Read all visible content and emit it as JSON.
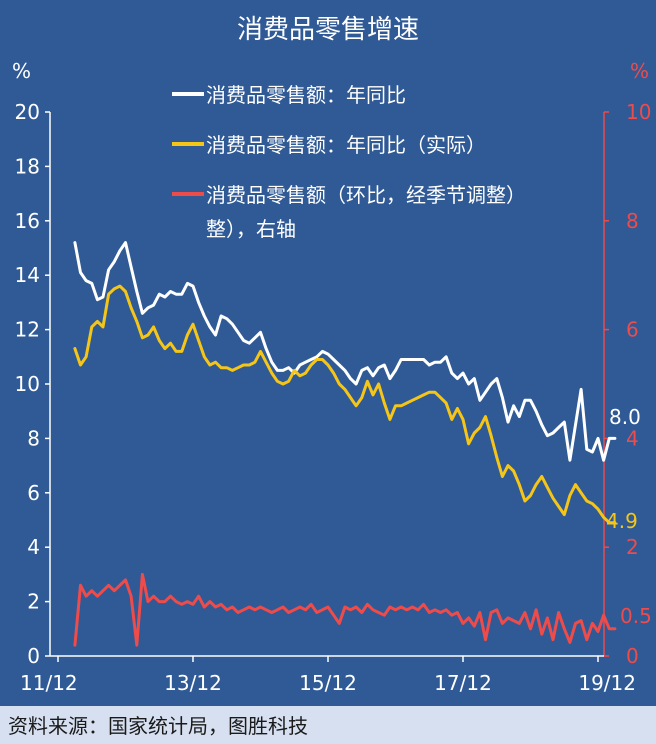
{
  "chart_data": {
    "type": "line",
    "title": "消费品零售增速",
    "left_axis": {
      "unit": "%",
      "range": [
        0,
        20
      ],
      "ticks": [
        "0",
        "2",
        "4",
        "6",
        "8",
        "10",
        "12",
        "14",
        "16",
        "18",
        "20"
      ]
    },
    "right_axis": {
      "unit": "%",
      "range": [
        0,
        10
      ],
      "ticks": [
        "0",
        "2",
        "4",
        "6",
        "8",
        "10"
      ]
    },
    "x_ticks": [
      "11/12",
      "13/12",
      "15/12",
      "17/12",
      "19/12"
    ],
    "x_tick_months": [
      0,
      24,
      48,
      72,
      96
    ],
    "legend_placement": "top-right",
    "grid": false,
    "series": [
      {
        "name": "消费品零售额：年同比",
        "color": "#ffffff",
        "axis": "left",
        "end_label": "8.0",
        "values": [
          [
            3,
            15.2
          ],
          [
            4,
            14.1
          ],
          [
            5,
            13.8
          ],
          [
            6,
            13.7
          ],
          [
            7,
            13.1
          ],
          [
            8,
            13.2
          ],
          [
            9,
            14.2
          ],
          [
            10,
            14.5
          ],
          [
            11,
            14.9
          ],
          [
            12,
            15.2
          ],
          [
            13,
            14.3
          ],
          [
            14,
            13.4
          ],
          [
            15,
            12.6
          ],
          [
            16,
            12.8
          ],
          [
            17,
            12.9
          ],
          [
            18,
            13.3
          ],
          [
            19,
            13.2
          ],
          [
            20,
            13.4
          ],
          [
            21,
            13.3
          ],
          [
            22,
            13.3
          ],
          [
            23,
            13.7
          ],
          [
            24,
            13.6
          ],
          [
            25,
            13.0
          ],
          [
            26,
            12.5
          ],
          [
            27,
            12.1
          ],
          [
            28,
            11.8
          ],
          [
            29,
            12.5
          ],
          [
            30,
            12.4
          ],
          [
            31,
            12.2
          ],
          [
            32,
            11.9
          ],
          [
            33,
            11.6
          ],
          [
            34,
            11.5
          ],
          [
            35,
            11.7
          ],
          [
            36,
            11.9
          ],
          [
            37,
            11.3
          ],
          [
            38,
            10.8
          ],
          [
            39,
            10.5
          ],
          [
            40,
            10.5
          ],
          [
            41,
            10.6
          ],
          [
            42,
            10.4
          ],
          [
            43,
            10.7
          ],
          [
            44,
            10.8
          ],
          [
            45,
            10.9
          ],
          [
            46,
            11.0
          ],
          [
            47,
            11.2
          ],
          [
            48,
            11.1
          ],
          [
            49,
            10.9
          ],
          [
            50,
            10.7
          ],
          [
            51,
            10.5
          ],
          [
            52,
            10.2
          ],
          [
            53,
            10.0
          ],
          [
            54,
            10.5
          ],
          [
            55,
            10.6
          ],
          [
            56,
            10.3
          ],
          [
            57,
            10.6
          ],
          [
            58,
            10.7
          ],
          [
            59,
            10.2
          ],
          [
            60,
            10.5
          ],
          [
            61,
            10.9
          ],
          [
            62,
            10.9
          ],
          [
            63,
            10.9
          ],
          [
            64,
            10.9
          ],
          [
            65,
            10.9
          ],
          [
            66,
            10.7
          ],
          [
            67,
            10.8
          ],
          [
            68,
            10.8
          ],
          [
            69,
            11.0
          ],
          [
            70,
            10.4
          ],
          [
            71,
            10.2
          ],
          [
            72,
            10.4
          ],
          [
            73,
            10.0
          ],
          [
            74,
            10.2
          ],
          [
            75,
            9.4
          ],
          [
            76,
            9.7
          ],
          [
            77,
            10.0
          ],
          [
            78,
            10.2
          ],
          [
            79,
            9.5
          ],
          [
            80,
            8.6
          ],
          [
            81,
            9.2
          ],
          [
            82,
            8.8
          ],
          [
            83,
            9.4
          ],
          [
            84,
            9.4
          ],
          [
            85,
            9.0
          ],
          [
            86,
            8.5
          ],
          [
            87,
            8.1
          ],
          [
            88,
            8.2
          ],
          [
            89,
            8.4
          ],
          [
            90,
            8.6
          ],
          [
            91,
            7.2
          ],
          [
            92,
            8.5
          ],
          [
            93,
            9.8
          ],
          [
            94,
            7.6
          ],
          [
            95,
            7.5
          ],
          [
            96,
            8.0
          ],
          [
            97,
            7.2
          ],
          [
            98,
            8.0
          ],
          [
            99,
            8.0
          ]
        ]
      },
      {
        "name": "消费品零售额：年同比（实际）",
        "color": "#f5c518",
        "axis": "left",
        "end_label": "4.9",
        "values": [
          [
            3,
            11.3
          ],
          [
            4,
            10.7
          ],
          [
            5,
            11.0
          ],
          [
            6,
            12.1
          ],
          [
            7,
            12.3
          ],
          [
            8,
            12.1
          ],
          [
            9,
            13.3
          ],
          [
            10,
            13.5
          ],
          [
            11,
            13.6
          ],
          [
            12,
            13.4
          ],
          [
            13,
            12.8
          ],
          [
            14,
            12.3
          ],
          [
            15,
            11.7
          ],
          [
            16,
            11.8
          ],
          [
            17,
            12.1
          ],
          [
            18,
            11.6
          ],
          [
            19,
            11.3
          ],
          [
            20,
            11.5
          ],
          [
            21,
            11.2
          ],
          [
            22,
            11.2
          ],
          [
            23,
            11.8
          ],
          [
            24,
            12.2
          ],
          [
            25,
            11.6
          ],
          [
            26,
            11.0
          ],
          [
            27,
            10.7
          ],
          [
            28,
            10.8
          ],
          [
            29,
            10.6
          ],
          [
            30,
            10.6
          ],
          [
            31,
            10.5
          ],
          [
            32,
            10.6
          ],
          [
            33,
            10.7
          ],
          [
            34,
            10.7
          ],
          [
            35,
            10.8
          ],
          [
            36,
            11.2
          ],
          [
            37,
            10.8
          ],
          [
            38,
            10.4
          ],
          [
            39,
            10.1
          ],
          [
            40,
            10.0
          ],
          [
            41,
            10.1
          ],
          [
            42,
            10.5
          ],
          [
            43,
            10.3
          ],
          [
            44,
            10.4
          ],
          [
            45,
            10.7
          ],
          [
            46,
            10.9
          ],
          [
            47,
            10.9
          ],
          [
            48,
            10.7
          ],
          [
            49,
            10.4
          ],
          [
            50,
            10.0
          ],
          [
            51,
            9.8
          ],
          [
            52,
            9.5
          ],
          [
            53,
            9.2
          ],
          [
            54,
            9.5
          ],
          [
            55,
            10.1
          ],
          [
            56,
            9.6
          ],
          [
            57,
            10.0
          ],
          [
            58,
            9.3
          ],
          [
            59,
            8.7
          ],
          [
            60,
            9.2
          ],
          [
            61,
            9.2
          ],
          [
            62,
            9.3
          ],
          [
            63,
            9.4
          ],
          [
            64,
            9.5
          ],
          [
            65,
            9.6
          ],
          [
            66,
            9.7
          ],
          [
            67,
            9.7
          ],
          [
            68,
            9.5
          ],
          [
            69,
            9.3
          ],
          [
            70,
            8.7
          ],
          [
            71,
            9.1
          ],
          [
            72,
            8.7
          ],
          [
            73,
            7.8
          ],
          [
            74,
            8.2
          ],
          [
            75,
            8.4
          ],
          [
            76,
            8.8
          ],
          [
            77,
            8.1
          ],
          [
            78,
            7.3
          ],
          [
            79,
            6.6
          ],
          [
            80,
            7.0
          ],
          [
            81,
            6.8
          ],
          [
            82,
            6.3
          ],
          [
            83,
            5.7
          ],
          [
            84,
            5.9
          ],
          [
            85,
            6.3
          ],
          [
            86,
            6.6
          ],
          [
            87,
            6.2
          ],
          [
            88,
            5.8
          ],
          [
            89,
            5.5
          ],
          [
            90,
            5.2
          ],
          [
            91,
            5.9
          ],
          [
            92,
            6.3
          ],
          [
            93,
            6.0
          ],
          [
            94,
            5.7
          ],
          [
            95,
            5.6
          ],
          [
            96,
            5.4
          ],
          [
            97,
            5.1
          ],
          [
            98,
            4.9
          ],
          [
            99,
            4.9
          ]
        ]
      },
      {
        "name": "消费品零售额（环比，经季节调整），右轴",
        "color": "#ee4b4b",
        "axis": "right",
        "end_label": "0.5",
        "values": [
          [
            3,
            0.2
          ],
          [
            4,
            1.3
          ],
          [
            5,
            1.1
          ],
          [
            6,
            1.2
          ],
          [
            7,
            1.1
          ],
          [
            8,
            1.2
          ],
          [
            9,
            1.3
          ],
          [
            10,
            1.2
          ],
          [
            11,
            1.3
          ],
          [
            12,
            1.4
          ],
          [
            13,
            1.1
          ],
          [
            14,
            0.2
          ],
          [
            15,
            1.5
          ],
          [
            16,
            1.0
          ],
          [
            17,
            1.1
          ],
          [
            18,
            1.0
          ],
          [
            19,
            1.0
          ],
          [
            20,
            1.1
          ],
          [
            21,
            1.0
          ],
          [
            22,
            0.95
          ],
          [
            23,
            1.0
          ],
          [
            24,
            0.95
          ],
          [
            25,
            1.1
          ],
          [
            26,
            0.9
          ],
          [
            27,
            1.0
          ],
          [
            28,
            0.9
          ],
          [
            29,
            0.95
          ],
          [
            30,
            0.85
          ],
          [
            31,
            0.9
          ],
          [
            32,
            0.8
          ],
          [
            33,
            0.85
          ],
          [
            34,
            0.9
          ],
          [
            35,
            0.85
          ],
          [
            36,
            0.9
          ],
          [
            37,
            0.85
          ],
          [
            38,
            0.8
          ],
          [
            39,
            0.85
          ],
          [
            40,
            0.9
          ],
          [
            41,
            0.8
          ],
          [
            42,
            0.85
          ],
          [
            43,
            0.9
          ],
          [
            44,
            0.85
          ],
          [
            45,
            0.95
          ],
          [
            46,
            0.8
          ],
          [
            47,
            0.85
          ],
          [
            48,
            0.9
          ],
          [
            49,
            0.75
          ],
          [
            50,
            0.6
          ],
          [
            51,
            0.9
          ],
          [
            52,
            0.85
          ],
          [
            53,
            0.9
          ],
          [
            54,
            0.8
          ],
          [
            55,
            0.95
          ],
          [
            56,
            0.85
          ],
          [
            57,
            0.8
          ],
          [
            58,
            0.75
          ],
          [
            59,
            0.9
          ],
          [
            60,
            0.85
          ],
          [
            61,
            0.9
          ],
          [
            62,
            0.85
          ],
          [
            63,
            0.9
          ],
          [
            64,
            0.85
          ],
          [
            65,
            0.95
          ],
          [
            66,
            0.8
          ],
          [
            67,
            0.85
          ],
          [
            68,
            0.8
          ],
          [
            69,
            0.85
          ],
          [
            70,
            0.75
          ],
          [
            71,
            0.8
          ],
          [
            72,
            0.6
          ],
          [
            73,
            0.7
          ],
          [
            74,
            0.55
          ],
          [
            75,
            0.8
          ],
          [
            76,
            0.3
          ],
          [
            77,
            0.8
          ],
          [
            78,
            0.85
          ],
          [
            79,
            0.6
          ],
          [
            80,
            0.7
          ],
          [
            81,
            0.65
          ],
          [
            82,
            0.6
          ],
          [
            83,
            0.8
          ],
          [
            84,
            0.5
          ],
          [
            85,
            0.85
          ],
          [
            86,
            0.4
          ],
          [
            87,
            0.7
          ],
          [
            88,
            0.3
          ],
          [
            89,
            0.8
          ],
          [
            90,
            0.5
          ],
          [
            91,
            0.25
          ],
          [
            92,
            0.6
          ],
          [
            93,
            0.65
          ],
          [
            94,
            0.3
          ],
          [
            95,
            0.6
          ],
          [
            96,
            0.45
          ],
          [
            97,
            0.75
          ],
          [
            98,
            0.5
          ],
          [
            99,
            0.5
          ]
        ]
      }
    ]
  },
  "legend": [
    {
      "lines": [
        "消费品零售额：年同比"
      ],
      "color": "#ffffff"
    },
    {
      "lines": [
        "消费品零售额：年同比（实际）"
      ],
      "color": "#f5c518"
    },
    {
      "lines": [
        "消费品零售额（环比，经季节调整）",
        "整），右轴"
      ],
      "color": "#ee4b4b"
    }
  ],
  "source_note": "资料来源：国家统计局，图胜科技",
  "colors": {
    "background": "#2f5a96",
    "left_axis": "#ffffff",
    "right_axis": "#ee4b4b",
    "source_bar": "#d6e0f0"
  }
}
